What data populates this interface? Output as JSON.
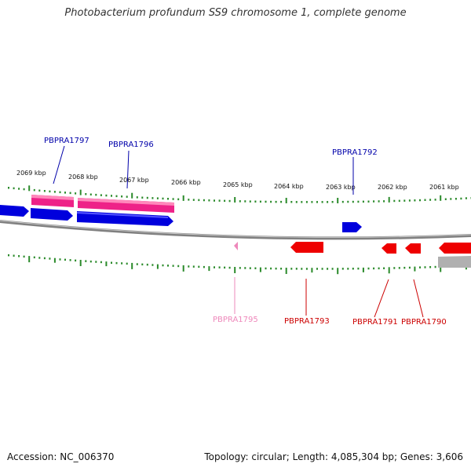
{
  "title": "Photobacterium profundum SS9 chromosome 1, complete genome",
  "footer": {
    "accession": "Accession: NC_006370",
    "summary": "Topology: circular; Length: 4,085,304 bp; Genes: 3,606"
  },
  "scale_labels": [
    "2069 kbp",
    "2068 kbp",
    "2067 kbp",
    "2066 kbp",
    "2065 kbp",
    "2064 kbp",
    "2063 kbp",
    "2062 kbp",
    "2061 kbp"
  ],
  "gene_labels": [
    {
      "name": "PBPRA1797",
      "color": "#0000aa"
    },
    {
      "name": "PBPRA1796",
      "color": "#0000aa"
    },
    {
      "name": "PBPRA1792",
      "color": "#0000aa"
    },
    {
      "name": "PBPRA1795",
      "color": "#ee88bb"
    },
    {
      "name": "PBPRA1793",
      "color": "#cc0000"
    },
    {
      "name": "PBPRA1791",
      "color": "#cc0000"
    },
    {
      "name": "PBPRA1790",
      "color": "#cc0000"
    }
  ],
  "colors": {
    "forward_cds": "#0000dd",
    "reverse_cds": "#ee0000",
    "rna": "#ee2288",
    "pseudo": "#ee88bb",
    "backbone": "#888888",
    "tick": "#2a8a2a"
  }
}
